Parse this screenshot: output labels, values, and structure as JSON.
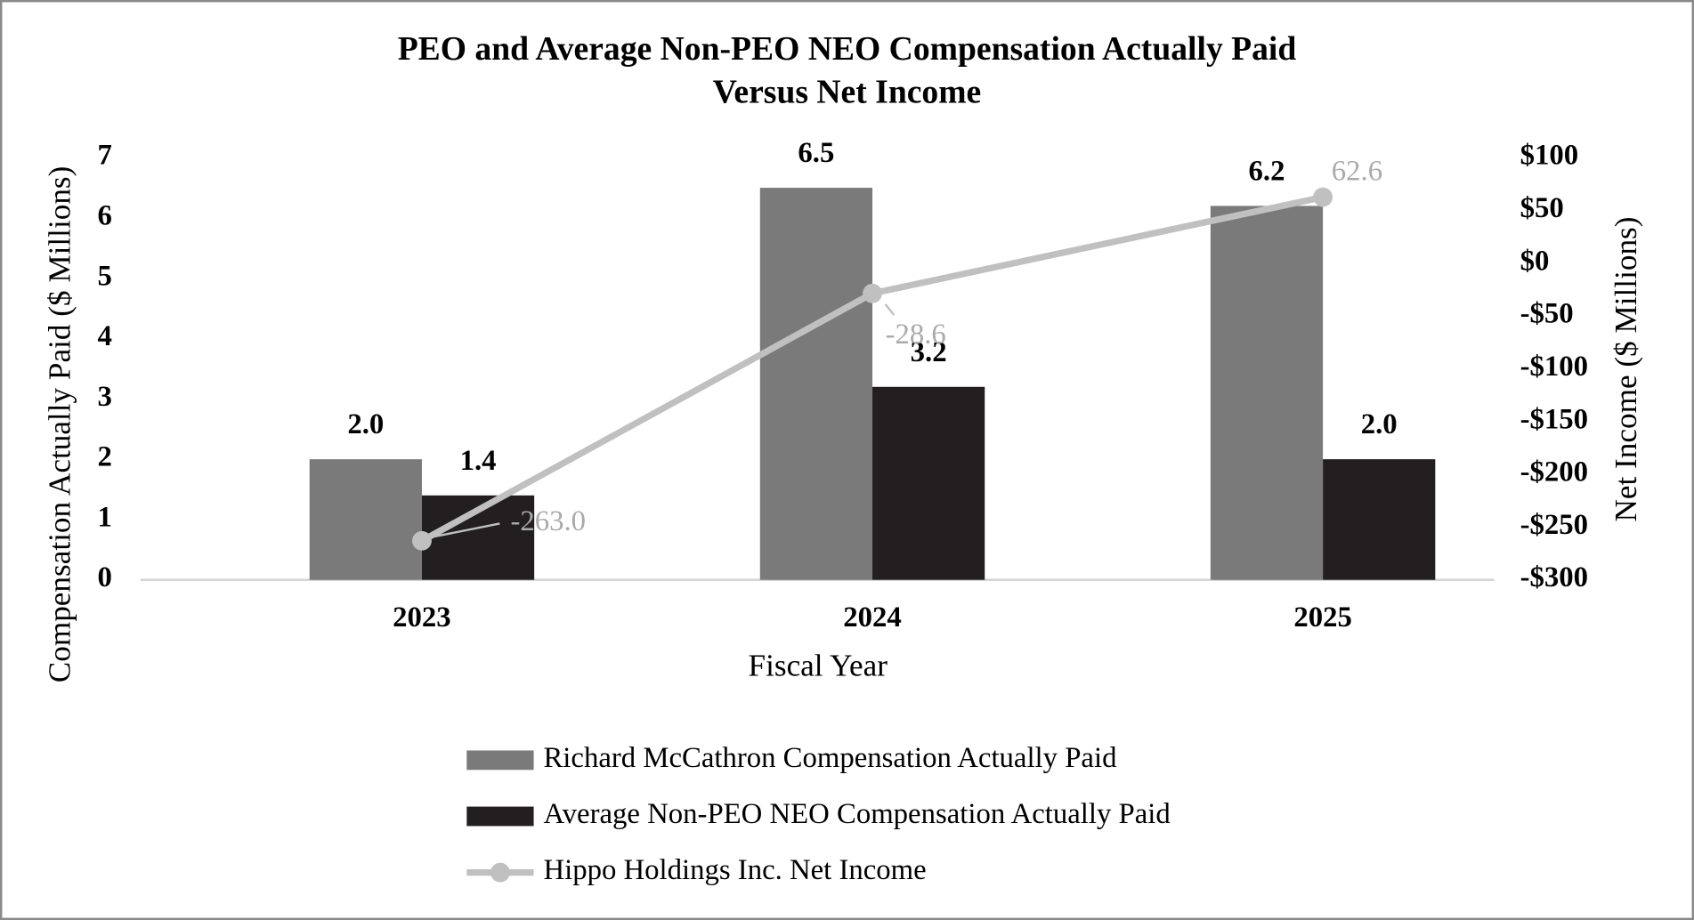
{
  "chart_data": {
    "type": "bar",
    "title": "PEO and Average Non-PEO NEO Compensation Actually Paid",
    "subtitle": "Versus Net Income",
    "x_label": "Fiscal Year",
    "y_label": "Compensation Actually Paid ($ Millions)",
    "y2_label": "Net Income ($ Millions)",
    "categories": [
      "2023",
      "2024",
      "2025"
    ],
    "series": [
      {
        "name": "Richard McCathron Compensation Actually Paid",
        "type": "bar",
        "color": "#7a7a7a",
        "values": [
          2.0,
          6.5,
          6.2
        ],
        "value_labels": [
          "2.0",
          "6.5",
          "6.2"
        ]
      },
      {
        "name": "Average Non-PEO NEO Compensation Actually Paid",
        "type": "bar",
        "color": "#231f20",
        "values": [
          1.4,
          3.2,
          2.0
        ],
        "value_labels": [
          "1.4",
          "3.2",
          "2.0"
        ]
      },
      {
        "name": "Hippo Holdings Inc. Net Income",
        "type": "line",
        "axis": "y2",
        "color": "#c0c0c0",
        "values": [
          -263.0,
          -28.6,
          62.6
        ],
        "value_labels": [
          "-263.0",
          "-28.6",
          "62.6"
        ]
      }
    ],
    "ylim": [
      0,
      7
    ],
    "yticks": [
      0,
      1,
      2,
      3,
      4,
      5,
      6,
      7
    ],
    "y2lim": [
      -300,
      100
    ],
    "y2ticks": [
      {
        "value": -300,
        "label": "-$300"
      },
      {
        "value": -250,
        "label": "-$250"
      },
      {
        "value": -200,
        "label": "-$200"
      },
      {
        "value": -150,
        "label": "-$150"
      },
      {
        "value": -100,
        "label": "-$100"
      },
      {
        "value": -50,
        "label": "-$50"
      },
      {
        "value": 0,
        "label": "$0"
      },
      {
        "value": 50,
        "label": "$50"
      },
      {
        "value": 100,
        "label": "$100"
      }
    ],
    "legend": "bottom",
    "grid": false
  }
}
